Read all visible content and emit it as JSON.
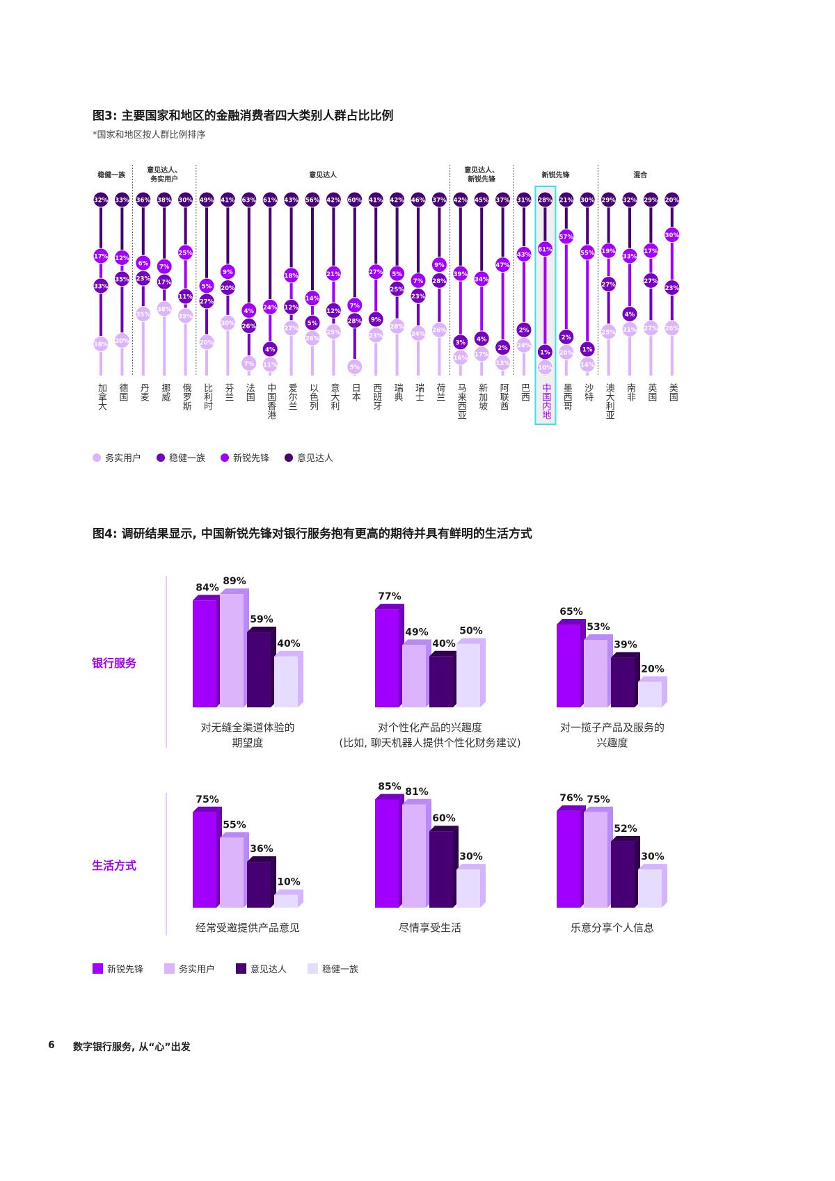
{
  "colors": {
    "务实用户": "#dcb4fc",
    "稳健一族": "#7500c0",
    "新锐先锋": "#a100ff",
    "意见达人": "#460073",
    "highlight_border": "#2ee6f0",
    "fig4_稳健一族": "#e6dcff"
  },
  "fig3": {
    "title": "图3: 主要国家和地区的金融消费者四大类别人群占比比例",
    "subtitle": "*国家和地区按人群比例排序",
    "legend": [
      "务实用户",
      "稳健一族",
      "新锐先锋",
      "意见达人"
    ]
  },
  "fig4": {
    "title": "图4: 调研结果显示, 中国新锐先锋对银行服务抱有更高的期待并具有鲜明的生活方式",
    "legend": [
      "新锐先锋",
      "务实用户",
      "意见达人",
      "稳健一族"
    ]
  },
  "footer": {
    "page_number": "6",
    "text": "数字银行服务, 从“心”出发"
  },
  "chart_data": [
    {
      "type": "bar",
      "stacked": true,
      "title": "图3: 主要国家和地区的金融消费者四大类别人群占比比例",
      "subtitle": "*国家和地区按人群比例排序",
      "unit": "%",
      "categories": [
        "加拿大",
        "德国",
        "丹麦",
        "挪威",
        "俄罗斯",
        "比利时",
        "芬兰",
        "法国",
        "中国香港",
        "爱尔兰",
        "以色列",
        "意大利",
        "日本",
        "西班牙",
        "瑞典",
        "瑞士",
        "荷兰",
        "马来西亚",
        "新加坡",
        "阿联酋",
        "巴西",
        "中国内地",
        "墨西哥",
        "沙特",
        "澳大利亚",
        "南非",
        "英国",
        "美国"
      ],
      "highlighted_category": "中国内地",
      "groups": [
        {
          "label": [
            "稳健一族"
          ],
          "count": 2
        },
        {
          "label": [
            "意见达人、",
            "务实用户"
          ],
          "count": 3
        },
        {
          "label": [
            "意见达人"
          ],
          "count": 12
        },
        {
          "label": [
            "意见达人、",
            "新锐先锋"
          ],
          "count": 3
        },
        {
          "label": [
            "新锐先锋"
          ],
          "count": 4
        },
        {
          "label": [
            "混合"
          ],
          "count": 4
        }
      ],
      "series": [
        {
          "name": "意见达人",
          "values": [
            32,
            33,
            36,
            38,
            30,
            49,
            41,
            63,
            61,
            43,
            56,
            42,
            60,
            41,
            42,
            46,
            37,
            42,
            45,
            37,
            31,
            28,
            21,
            30,
            29,
            32,
            29,
            20
          ]
        },
        {
          "name": "新锐先锋",
          "values": [
            17,
            12,
            6,
            7,
            25,
            5,
            9,
            4,
            24,
            18,
            14,
            21,
            7,
            27,
            5,
            7,
            9,
            39,
            34,
            47,
            43,
            61,
            57,
            55,
            19,
            33,
            17,
            30
          ]
        },
        {
          "name": "稳健一族",
          "values": [
            33,
            35,
            23,
            17,
            11,
            27,
            20,
            26,
            4,
            12,
            5,
            12,
            28,
            9,
            25,
            23,
            28,
            3,
            4,
            2,
            2,
            1,
            2,
            1,
            27,
            4,
            27,
            23
          ]
        },
        {
          "name": "务实用户",
          "values": [
            18,
            20,
            35,
            38,
            35,
            20,
            30,
            7,
            11,
            27,
            26,
            25,
            5,
            23,
            28,
            24,
            26,
            16,
            17,
            13,
            24,
            10,
            20,
            14,
            25,
            31,
            27,
            26
          ]
        }
      ],
      "legend": [
        "务实用户",
        "稳健一族",
        "新锐先锋",
        "意见达人"
      ],
      "legend_position": "bottom-left"
    },
    {
      "type": "bar",
      "title": "图4: 调研结果显示, 中国新锐先锋对银行服务抱有更高的期待并具有鲜明的生活方式",
      "unit": "%",
      "series_names": [
        "新锐先锋",
        "务实用户",
        "意见达人",
        "稳健一族"
      ],
      "rows": [
        {
          "label": "银行服务",
          "panels": [
            {
              "caption": [
                "对无缝全渠道体验的",
                "期望度"
              ],
              "values": [
                84,
                89,
                59,
                40
              ]
            },
            {
              "caption": [
                "对个性化产品的兴趣度",
                "(比如, 聊天机器人提供个性化财务建议)"
              ],
              "values": [
                77,
                49,
                40,
                50
              ]
            },
            {
              "caption": [
                "对一揽子产品及服务的",
                "兴趣度"
              ],
              "values": [
                65,
                53,
                39,
                20
              ]
            }
          ]
        },
        {
          "label": "生活方式",
          "panels": [
            {
              "caption": [
                "经常受邀提供产品意见"
              ],
              "values": [
                75,
                55,
                36,
                10
              ]
            },
            {
              "caption": [
                "尽情享受生活"
              ],
              "values": [
                85,
                81,
                60,
                30
              ]
            },
            {
              "caption": [
                "乐意分享个人信息"
              ],
              "values": [
                76,
                75,
                52,
                30
              ]
            }
          ]
        }
      ],
      "legend": [
        "新锐先锋",
        "务实用户",
        "意见达人",
        "稳健一族"
      ],
      "legend_position": "bottom-left"
    }
  ]
}
